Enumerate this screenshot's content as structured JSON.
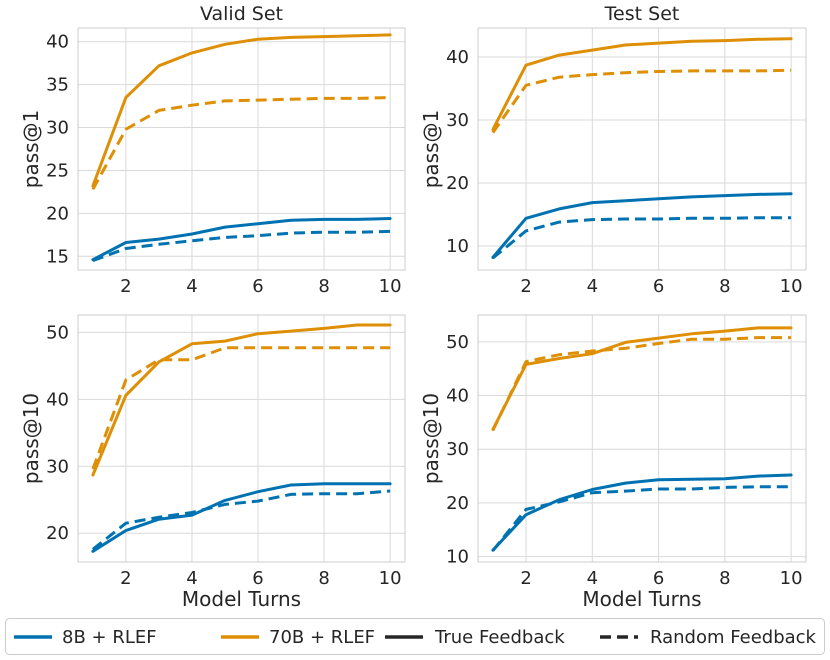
{
  "colors": {
    "blue": "#0072b2",
    "orange": "#de8f05",
    "legend_line": "#262626",
    "grid": "#d9d9d9",
    "frame": "#cccccc"
  },
  "legend": {
    "placement": "bottom",
    "items": [
      {
        "label": "8B + RLEF",
        "color": "#0072b2",
        "style": "solid"
      },
      {
        "label": "70B + RLEF",
        "color": "#de8f05",
        "style": "solid"
      },
      {
        "label": "True Feedback",
        "color": "#262626",
        "style": "solid"
      },
      {
        "label": "Random Feedback",
        "color": "#262626",
        "style": "dashed"
      }
    ]
  },
  "chart_data": [
    {
      "type": "line",
      "title": "Valid Set",
      "xlabel": "",
      "ylabel": "pass@1",
      "xlim": [
        0.55,
        10.45
      ],
      "ylim": [
        13.4,
        41.6
      ],
      "xticks": [
        2,
        4,
        6,
        8,
        10
      ],
      "yticks": [
        15,
        20,
        25,
        30,
        35,
        40
      ],
      "grid": true,
      "x": [
        1,
        2,
        3,
        4,
        5,
        6,
        7,
        8,
        9,
        10
      ],
      "series": [
        {
          "model": "70B + RLEF",
          "feedback": "True Feedback",
          "color": "#de8f05",
          "dash": "solid",
          "values": [
            23.2,
            33.5,
            37.2,
            38.7,
            39.7,
            40.3,
            40.5,
            40.6,
            40.7,
            40.8
          ]
        },
        {
          "model": "70B + RLEF",
          "feedback": "Random Feedback",
          "color": "#de8f05",
          "dash": "dashed",
          "values": [
            22.8,
            29.8,
            32.0,
            32.6,
            33.1,
            33.2,
            33.3,
            33.4,
            33.4,
            33.5
          ]
        },
        {
          "model": "8B + RLEF",
          "feedback": "True Feedback",
          "color": "#0072b2",
          "dash": "solid",
          "values": [
            14.6,
            16.6,
            17.0,
            17.6,
            18.4,
            18.8,
            19.2,
            19.3,
            19.3,
            19.4
          ]
        },
        {
          "model": "8B + RLEF",
          "feedback": "Random Feedback",
          "color": "#0072b2",
          "dash": "dashed",
          "values": [
            14.5,
            15.9,
            16.4,
            16.8,
            17.2,
            17.4,
            17.7,
            17.8,
            17.8,
            17.9
          ]
        }
      ]
    },
    {
      "type": "line",
      "title": "Test Set",
      "xlabel": "",
      "ylabel": "pass@1",
      "xlim": [
        0.55,
        10.45
      ],
      "ylim": [
        6.2,
        44.6
      ],
      "xticks": [
        2,
        4,
        6,
        8,
        10
      ],
      "yticks": [
        10,
        20,
        30,
        40
      ],
      "grid": true,
      "x": [
        1,
        2,
        3,
        4,
        5,
        6,
        7,
        8,
        9,
        10
      ],
      "series": [
        {
          "model": "70B + RLEF",
          "feedback": "True Feedback",
          "color": "#de8f05",
          "dash": "solid",
          "values": [
            28.5,
            38.7,
            40.3,
            41.1,
            41.9,
            42.2,
            42.5,
            42.6,
            42.8,
            42.9
          ]
        },
        {
          "model": "70B + RLEF",
          "feedback": "Random Feedback",
          "color": "#de8f05",
          "dash": "dashed",
          "values": [
            28.0,
            35.5,
            36.8,
            37.2,
            37.5,
            37.7,
            37.8,
            37.8,
            37.8,
            37.9
          ]
        },
        {
          "model": "8B + RLEF",
          "feedback": "True Feedback",
          "color": "#0072b2",
          "dash": "solid",
          "values": [
            8.2,
            14.4,
            15.9,
            16.9,
            17.2,
            17.5,
            17.8,
            18.0,
            18.2,
            18.3
          ]
        },
        {
          "model": "8B + RLEF",
          "feedback": "Random Feedback",
          "color": "#0072b2",
          "dash": "dashed",
          "values": [
            8.1,
            12.4,
            13.8,
            14.2,
            14.3,
            14.3,
            14.4,
            14.4,
            14.5,
            14.5
          ]
        }
      ]
    },
    {
      "type": "line",
      "title": "",
      "xlabel": "Model Turns",
      "ylabel": "pass@10",
      "xlim": [
        0.55,
        10.45
      ],
      "ylim": [
        15.7,
        52.6
      ],
      "xticks": [
        2,
        4,
        6,
        8,
        10
      ],
      "yticks": [
        20,
        30,
        40,
        50
      ],
      "grid": true,
      "x": [
        1,
        2,
        3,
        4,
        5,
        6,
        7,
        8,
        9,
        10
      ],
      "series": [
        {
          "model": "70B + RLEF",
          "feedback": "True Feedback",
          "color": "#de8f05",
          "dash": "solid",
          "values": [
            28.7,
            40.6,
            45.6,
            48.3,
            48.7,
            49.8,
            50.2,
            50.6,
            51.1,
            51.1
          ]
        },
        {
          "model": "70B + RLEF",
          "feedback": "Random Feedback",
          "color": "#de8f05",
          "dash": "dashed",
          "values": [
            29.6,
            42.9,
            45.9,
            45.9,
            47.7,
            47.7,
            47.7,
            47.7,
            47.7,
            47.7
          ]
        },
        {
          "model": "8B + RLEF",
          "feedback": "True Feedback",
          "color": "#0072b2",
          "dash": "solid",
          "values": [
            17.3,
            20.4,
            22.1,
            22.7,
            24.9,
            26.2,
            27.2,
            27.4,
            27.4,
            27.4
          ]
        },
        {
          "model": "8B + RLEF",
          "feedback": "Random Feedback",
          "color": "#0072b2",
          "dash": "dashed",
          "values": [
            17.6,
            21.5,
            22.4,
            23.1,
            24.3,
            24.8,
            25.8,
            25.9,
            25.9,
            26.3
          ]
        }
      ]
    },
    {
      "type": "line",
      "title": "",
      "xlabel": "Model Turns",
      "ylabel": "pass@10",
      "xlim": [
        0.55,
        10.45
      ],
      "ylim": [
        9.0,
        55.0
      ],
      "xticks": [
        2,
        4,
        6,
        8,
        10
      ],
      "yticks": [
        10,
        20,
        30,
        40,
        50
      ],
      "grid": true,
      "x": [
        1,
        2,
        3,
        4,
        5,
        6,
        7,
        8,
        9,
        10
      ],
      "series": [
        {
          "model": "70B + RLEF",
          "feedback": "True Feedback",
          "color": "#de8f05",
          "dash": "solid",
          "values": [
            33.7,
            45.8,
            46.9,
            47.8,
            49.9,
            50.7,
            51.5,
            52.0,
            52.6,
            52.6
          ]
        },
        {
          "model": "70B + RLEF",
          "feedback": "Random Feedback",
          "color": "#de8f05",
          "dash": "dashed",
          "values": [
            33.5,
            46.3,
            47.6,
            48.3,
            48.8,
            49.7,
            50.5,
            50.5,
            50.8,
            50.8
          ]
        },
        {
          "model": "8B + RLEF",
          "feedback": "True Feedback",
          "color": "#0072b2",
          "dash": "solid",
          "values": [
            11.2,
            17.8,
            20.6,
            22.5,
            23.7,
            24.3,
            24.4,
            24.5,
            25.0,
            25.2
          ]
        },
        {
          "model": "8B + RLEF",
          "feedback": "Random Feedback",
          "color": "#0072b2",
          "dash": "dashed",
          "values": [
            11.1,
            18.8,
            20.2,
            21.9,
            22.2,
            22.6,
            22.6,
            22.9,
            23.0,
            23.0
          ]
        }
      ]
    }
  ]
}
